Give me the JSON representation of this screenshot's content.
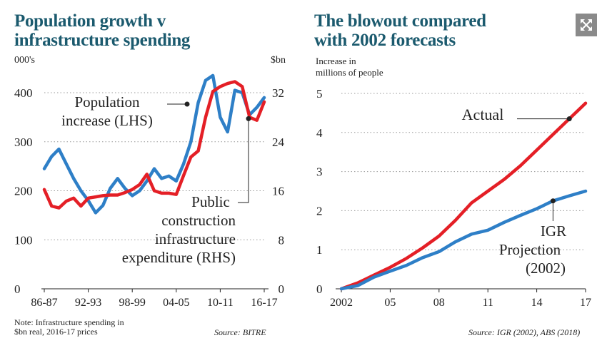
{
  "expand_button": {
    "icon": "expand-icon"
  },
  "colors": {
    "title": "#1b5a6e",
    "blue": "#2e7fc7",
    "red": "#e41f26",
    "grid": "#9a9a9a",
    "axis": "#222222"
  },
  "chart_data": [
    {
      "type": "line",
      "title_line1": "Population growth v",
      "title_line2": "infrastructure spending",
      "left_unit": "000's",
      "right_unit": "$bn",
      "ylim_left": [
        0,
        400
      ],
      "ylim_right": [
        0,
        32
      ],
      "yticks_left": [
        "0",
        "100",
        "200",
        "300",
        "400"
      ],
      "yticks_right": [
        "0",
        "8",
        "16",
        "24",
        "32"
      ],
      "xticks": [
        "86-87",
        "92-93",
        "98-99",
        "04-05",
        "10-11",
        "16-17"
      ],
      "xtick_index": [
        0,
        6,
        12,
        18,
        24,
        30
      ],
      "series": [
        {
          "name": "Population increase (LHS)",
          "axis": "left",
          "color": "#2e7fc7",
          "values": [
            245,
            270,
            285,
            255,
            225,
            200,
            180,
            155,
            170,
            205,
            225,
            205,
            190,
            200,
            220,
            245,
            225,
            230,
            220,
            255,
            300,
            380,
            425,
            435,
            350,
            320,
            405,
            400,
            355,
            370,
            390
          ]
        },
        {
          "name": "Public construction infrastructure expenditure (RHS)",
          "axis": "right",
          "color": "#e41f26",
          "values": [
            16.2,
            13.5,
            13.2,
            14.3,
            14.8,
            13.5,
            14.8,
            15.0,
            15.2,
            15.3,
            15.3,
            15.7,
            16.2,
            17.0,
            18.7,
            16.0,
            15.6,
            15.6,
            15.4,
            18.5,
            21.5,
            22.5,
            28.0,
            32.2,
            33.0,
            33.5,
            33.8,
            33.0,
            28.0,
            27.5,
            30.5
          ]
        }
      ],
      "annotations": [
        {
          "text": "Population",
          "target_series": 0,
          "target_index": 22
        },
        {
          "text": "increase (LHS)"
        },
        {
          "text": "Public",
          "target_series": 1,
          "target_index": 28
        },
        {
          "text": "construction"
        },
        {
          "text": "infrastructure"
        },
        {
          "text": "expenditure (RHS)"
        }
      ],
      "note_line1": "Note: Infrastructure spending in",
      "note_line2": "$bn real, 2016-17 prices",
      "source": "Source: BITRE"
    },
    {
      "type": "line",
      "title_line1": "The blowout compared",
      "title_line2": "with 2002 forecasts",
      "ylabel_line1": "Increase in",
      "ylabel_line2": "millions of people",
      "ylim": [
        0,
        5
      ],
      "yticks": [
        "0",
        "1",
        "2",
        "3",
        "4",
        "5"
      ],
      "xlim": [
        2002,
        2017
      ],
      "xticks": [
        "2002",
        "05",
        "08",
        "11",
        "14",
        "17"
      ],
      "xtick_years": [
        2002,
        2005,
        2008,
        2011,
        2014,
        2017
      ],
      "series": [
        {
          "name": "Actual",
          "color": "#e41f26",
          "x": [
            2002,
            2003,
            2004,
            2005,
            2006,
            2007,
            2008,
            2009,
            2010,
            2011,
            2012,
            2013,
            2014,
            2015,
            2016,
            2017
          ],
          "values": [
            0,
            0.15,
            0.35,
            0.55,
            0.78,
            1.05,
            1.35,
            1.75,
            2.2,
            2.5,
            2.8,
            3.15,
            3.55,
            3.95,
            4.35,
            4.75
          ]
        },
        {
          "name": "IGR Projection (2002)",
          "color": "#2e7fc7",
          "x": [
            2002,
            2003,
            2004,
            2005,
            2006,
            2007,
            2008,
            2009,
            2010,
            2011,
            2012,
            2013,
            2014,
            2015,
            2016,
            2017
          ],
          "values": [
            0,
            0.08,
            0.3,
            0.45,
            0.6,
            0.8,
            0.95,
            1.2,
            1.4,
            1.5,
            1.7,
            1.88,
            2.05,
            2.25,
            2.38,
            2.5
          ]
        }
      ],
      "annotations": [
        {
          "text": "Actual",
          "target_series": 0,
          "target_x": 2016
        },
        {
          "text": "IGR",
          "target_series": 1,
          "target_x": 2015
        },
        {
          "text": "Projection"
        },
        {
          "text": "(2002)"
        }
      ],
      "source": "Source: IGR (2002), ABS (2018)"
    }
  ]
}
